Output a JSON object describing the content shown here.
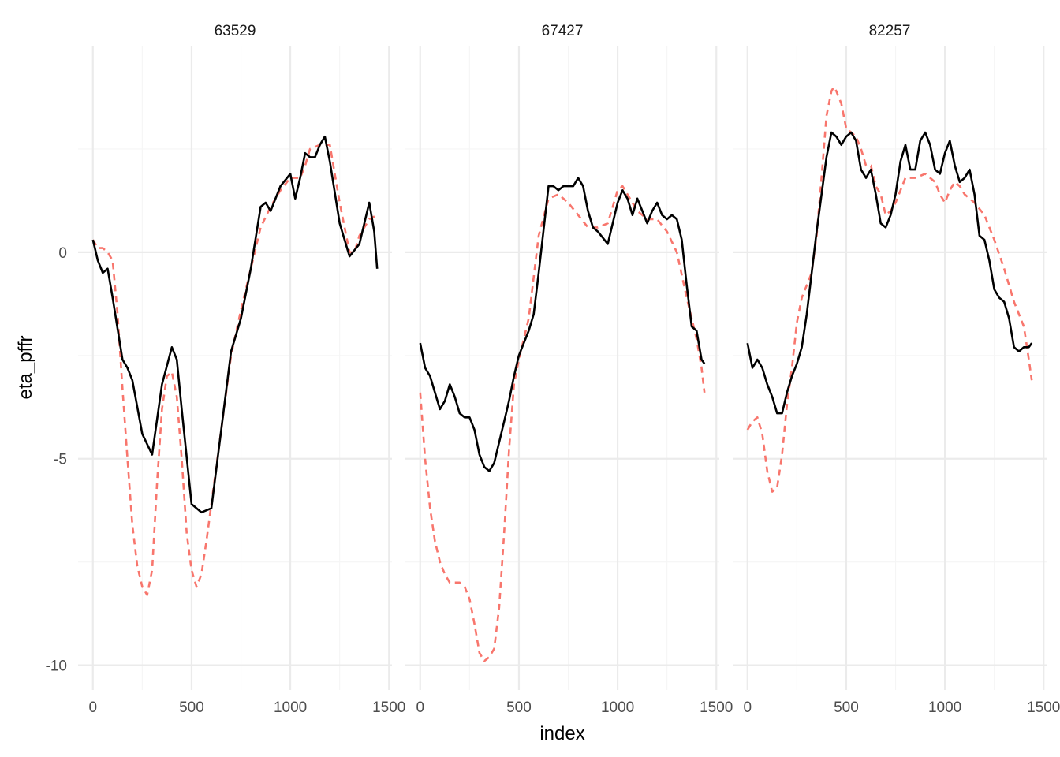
{
  "chart_data": {
    "type": "line",
    "xlabel": "index",
    "ylabel": "eta_pffr",
    "xlim": [
      -75,
      1515
    ],
    "ylim": [
      -10.6,
      5.0
    ],
    "xticks": [
      0,
      500,
      1000,
      1500
    ],
    "xtick_labels": [
      "0",
      "500",
      "1000",
      "1500"
    ],
    "yticks": [
      0,
      -5,
      -10
    ],
    "ytick_labels": [
      "0",
      "-5",
      "-10"
    ],
    "grid": true,
    "legend": "none",
    "colors": {
      "solid": "#000000",
      "dashed": "#f8766d",
      "grid_major": "#ebebeb",
      "grid_minor": "#f5f5f5"
    },
    "panels": [
      {
        "title": "63529",
        "series": [
          {
            "style": "solid",
            "x": [
              0,
              25,
              50,
              75,
              100,
              150,
              175,
              200,
              250,
              300,
              350,
              400,
              425,
              450,
              500,
              550,
              600,
              650,
              700,
              750,
              800,
              850,
              875,
              900,
              950,
              1000,
              1025,
              1050,
              1075,
              1100,
              1125,
              1150,
              1175,
              1200,
              1250,
              1300,
              1350,
              1400,
              1425,
              1440
            ],
            "y": [
              0.3,
              -0.2,
              -0.5,
              -0.4,
              -1.1,
              -2.6,
              -2.8,
              -3.1,
              -4.4,
              -4.9,
              -3.2,
              -2.3,
              -2.6,
              -3.8,
              -6.1,
              -6.3,
              -6.2,
              -4.3,
              -2.4,
              -1.6,
              -0.4,
              1.1,
              1.2,
              1.0,
              1.6,
              1.9,
              1.3,
              1.8,
              2.4,
              2.3,
              2.3,
              2.6,
              2.8,
              2.2,
              0.7,
              -0.1,
              0.2,
              1.2,
              0.5,
              -0.4
            ]
          },
          {
            "style": "dashed",
            "x": [
              0,
              25,
              50,
              75,
              100,
              125,
              150,
              175,
              200,
              225,
              250,
              275,
              300,
              325,
              350,
              375,
              400,
              425,
              450,
              475,
              500,
              525,
              550,
              575,
              600,
              650,
              700,
              750,
              800,
              850,
              900,
              950,
              1000,
              1050,
              1075,
              1100,
              1150,
              1200,
              1250,
              1300,
              1325,
              1350,
              1400,
              1440
            ],
            "y": [
              0.3,
              0.1,
              0.1,
              0.0,
              -0.2,
              -1.5,
              -3.3,
              -5.0,
              -6.6,
              -7.6,
              -8.1,
              -8.3,
              -7.7,
              -5.6,
              -3.8,
              -3.0,
              -2.9,
              -3.5,
              -5.0,
              -6.8,
              -7.7,
              -8.1,
              -7.8,
              -7.0,
              -6.1,
              -4.3,
              -2.5,
              -1.4,
              -0.4,
              0.6,
              1.1,
              1.5,
              1.8,
              1.8,
              2.1,
              2.5,
              2.6,
              2.6,
              1.2,
              0.0,
              0.0,
              0.4,
              0.8,
              0.9
            ]
          }
        ]
      },
      {
        "title": "67427",
        "series": [
          {
            "style": "solid",
            "x": [
              0,
              25,
              50,
              75,
              100,
              125,
              150,
              175,
              200,
              225,
              250,
              275,
              300,
              325,
              350,
              375,
              400,
              425,
              450,
              475,
              500,
              550,
              575,
              600,
              650,
              675,
              700,
              725,
              750,
              775,
              800,
              825,
              850,
              875,
              900,
              950,
              1000,
              1025,
              1050,
              1075,
              1100,
              1125,
              1150,
              1175,
              1200,
              1225,
              1250,
              1275,
              1300,
              1325,
              1350,
              1375,
              1400,
              1425,
              1440
            ],
            "y": [
              -2.2,
              -2.8,
              -3.0,
              -3.4,
              -3.8,
              -3.6,
              -3.2,
              -3.5,
              -3.9,
              -4.0,
              -4.0,
              -4.3,
              -4.9,
              -5.2,
              -5.3,
              -5.1,
              -4.6,
              -4.1,
              -3.6,
              -3.0,
              -2.5,
              -1.9,
              -1.5,
              -0.5,
              1.6,
              1.6,
              1.5,
              1.6,
              1.6,
              1.6,
              1.8,
              1.6,
              1.0,
              0.6,
              0.5,
              0.2,
              1.2,
              1.5,
              1.3,
              0.9,
              1.3,
              1.0,
              0.7,
              1.0,
              1.2,
              0.9,
              0.8,
              0.9,
              0.8,
              0.3,
              -0.8,
              -1.8,
              -1.9,
              -2.6,
              -2.7
            ]
          },
          {
            "style": "dashed",
            "x": [
              0,
              25,
              50,
              75,
              100,
              125,
              150,
              175,
              200,
              225,
              250,
              275,
              300,
              325,
              350,
              375,
              400,
              425,
              450,
              475,
              500,
              550,
              600,
              650,
              700,
              750,
              800,
              850,
              900,
              950,
              1000,
              1025,
              1050,
              1100,
              1150,
              1200,
              1250,
              1300,
              1350,
              1400,
              1425,
              1440
            ],
            "y": [
              -3.4,
              -5.0,
              -6.2,
              -7.0,
              -7.5,
              -7.8,
              -8.0,
              -8.0,
              -8.0,
              -8.1,
              -8.4,
              -9.0,
              -9.7,
              -9.9,
              -9.8,
              -9.6,
              -8.6,
              -6.8,
              -4.8,
              -3.2,
              -2.6,
              -1.6,
              0.4,
              1.3,
              1.4,
              1.2,
              0.9,
              0.6,
              0.6,
              0.7,
              1.5,
              1.6,
              1.4,
              1.0,
              0.8,
              0.8,
              0.5,
              0.0,
              -1.1,
              -2.1,
              -2.8,
              -3.4
            ]
          }
        ]
      },
      {
        "title": "82257",
        "series": [
          {
            "style": "solid",
            "x": [
              0,
              25,
              50,
              75,
              100,
              125,
              150,
              175,
              200,
              225,
              250,
              275,
              300,
              350,
              400,
              425,
              450,
              475,
              500,
              525,
              550,
              575,
              600,
              625,
              650,
              675,
              700,
              725,
              750,
              775,
              800,
              825,
              850,
              875,
              900,
              925,
              950,
              975,
              1000,
              1025,
              1050,
              1075,
              1100,
              1125,
              1150,
              1175,
              1200,
              1225,
              1250,
              1275,
              1300,
              1325,
              1350,
              1375,
              1400,
              1425,
              1440
            ],
            "y": [
              -2.2,
              -2.8,
              -2.6,
              -2.8,
              -3.2,
              -3.5,
              -3.9,
              -3.9,
              -3.4,
              -3.0,
              -2.7,
              -2.3,
              -1.5,
              0.5,
              2.3,
              2.9,
              2.8,
              2.6,
              2.8,
              2.9,
              2.7,
              2.0,
              1.8,
              2.0,
              1.4,
              0.7,
              0.6,
              0.9,
              1.4,
              2.2,
              2.6,
              2.0,
              2.0,
              2.7,
              2.9,
              2.6,
              2.0,
              1.9,
              2.4,
              2.7,
              2.1,
              1.7,
              1.8,
              2.0,
              1.4,
              0.4,
              0.3,
              -0.2,
              -0.9,
              -1.1,
              -1.2,
              -1.6,
              -2.3,
              -2.4,
              -2.3,
              -2.3,
              -2.2
            ]
          },
          {
            "style": "dashed",
            "x": [
              0,
              25,
              50,
              75,
              100,
              125,
              150,
              175,
              200,
              225,
              250,
              275,
              300,
              325,
              350,
              375,
              400,
              425,
              437,
              450,
              475,
              500,
              525,
              550,
              575,
              600,
              625,
              650,
              675,
              700,
              725,
              750,
              775,
              800,
              850,
              900,
              950,
              975,
              1000,
              1025,
              1050,
              1075,
              1100,
              1150,
              1200,
              1250,
              1300,
              1350,
              1400,
              1425,
              1440
            ],
            "y": [
              -4.3,
              -4.1,
              -4.0,
              -4.4,
              -5.3,
              -5.8,
              -5.7,
              -4.9,
              -3.7,
              -2.8,
              -1.7,
              -1.1,
              -0.8,
              -0.5,
              0.4,
              1.8,
              3.3,
              3.9,
              4.0,
              3.9,
              3.6,
              3.0,
              2.9,
              2.8,
              2.5,
              2.1,
              2.1,
              1.6,
              1.4,
              0.9,
              1.0,
              1.2,
              1.5,
              1.8,
              1.8,
              1.9,
              1.7,
              1.4,
              1.2,
              1.5,
              1.7,
              1.6,
              1.4,
              1.2,
              0.9,
              0.3,
              -0.4,
              -1.2,
              -1.8,
              -2.6,
              -3.1
            ]
          }
        ]
      }
    ]
  }
}
